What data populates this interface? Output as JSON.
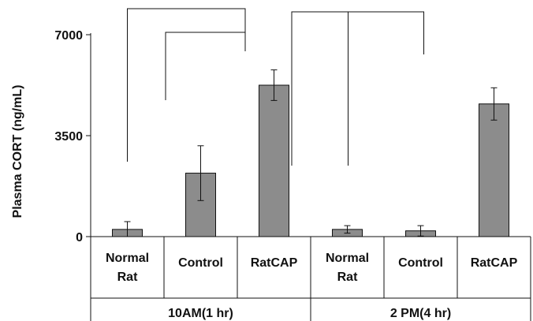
{
  "chart_data": {
    "type": "bar",
    "ylabel": "Plasma CORT (ng/mL)",
    "ylim": [
      0,
      7000
    ],
    "yticks": [
      "0",
      "3500",
      "7000"
    ],
    "ytick_values": [
      0,
      3500,
      7000
    ],
    "categories": [
      "Normal\nRat",
      "Control",
      "RatCAP",
      "Normal\nRat",
      "Control",
      "RatCAP"
    ],
    "groups": [
      {
        "label": "10AM(1 hr)",
        "start": 0,
        "end": 3
      },
      {
        "label": "2 PM(4 hr)",
        "start": 3,
        "end": 6
      }
    ],
    "series": [
      {
        "values": [
          250,
          2200,
          5250,
          250,
          200,
          4600
        ],
        "error": [
          270,
          950,
          530,
          130,
          180,
          560
        ]
      }
    ],
    "bar_color": "#8c8c8c",
    "significance_brackets": [
      {
        "from": 0,
        "to": 2
      },
      {
        "from": 1,
        "to": 2
      },
      {
        "from": 2,
        "to": 5
      },
      {
        "from": 3,
        "to": 5
      }
    ],
    "grid": false
  }
}
